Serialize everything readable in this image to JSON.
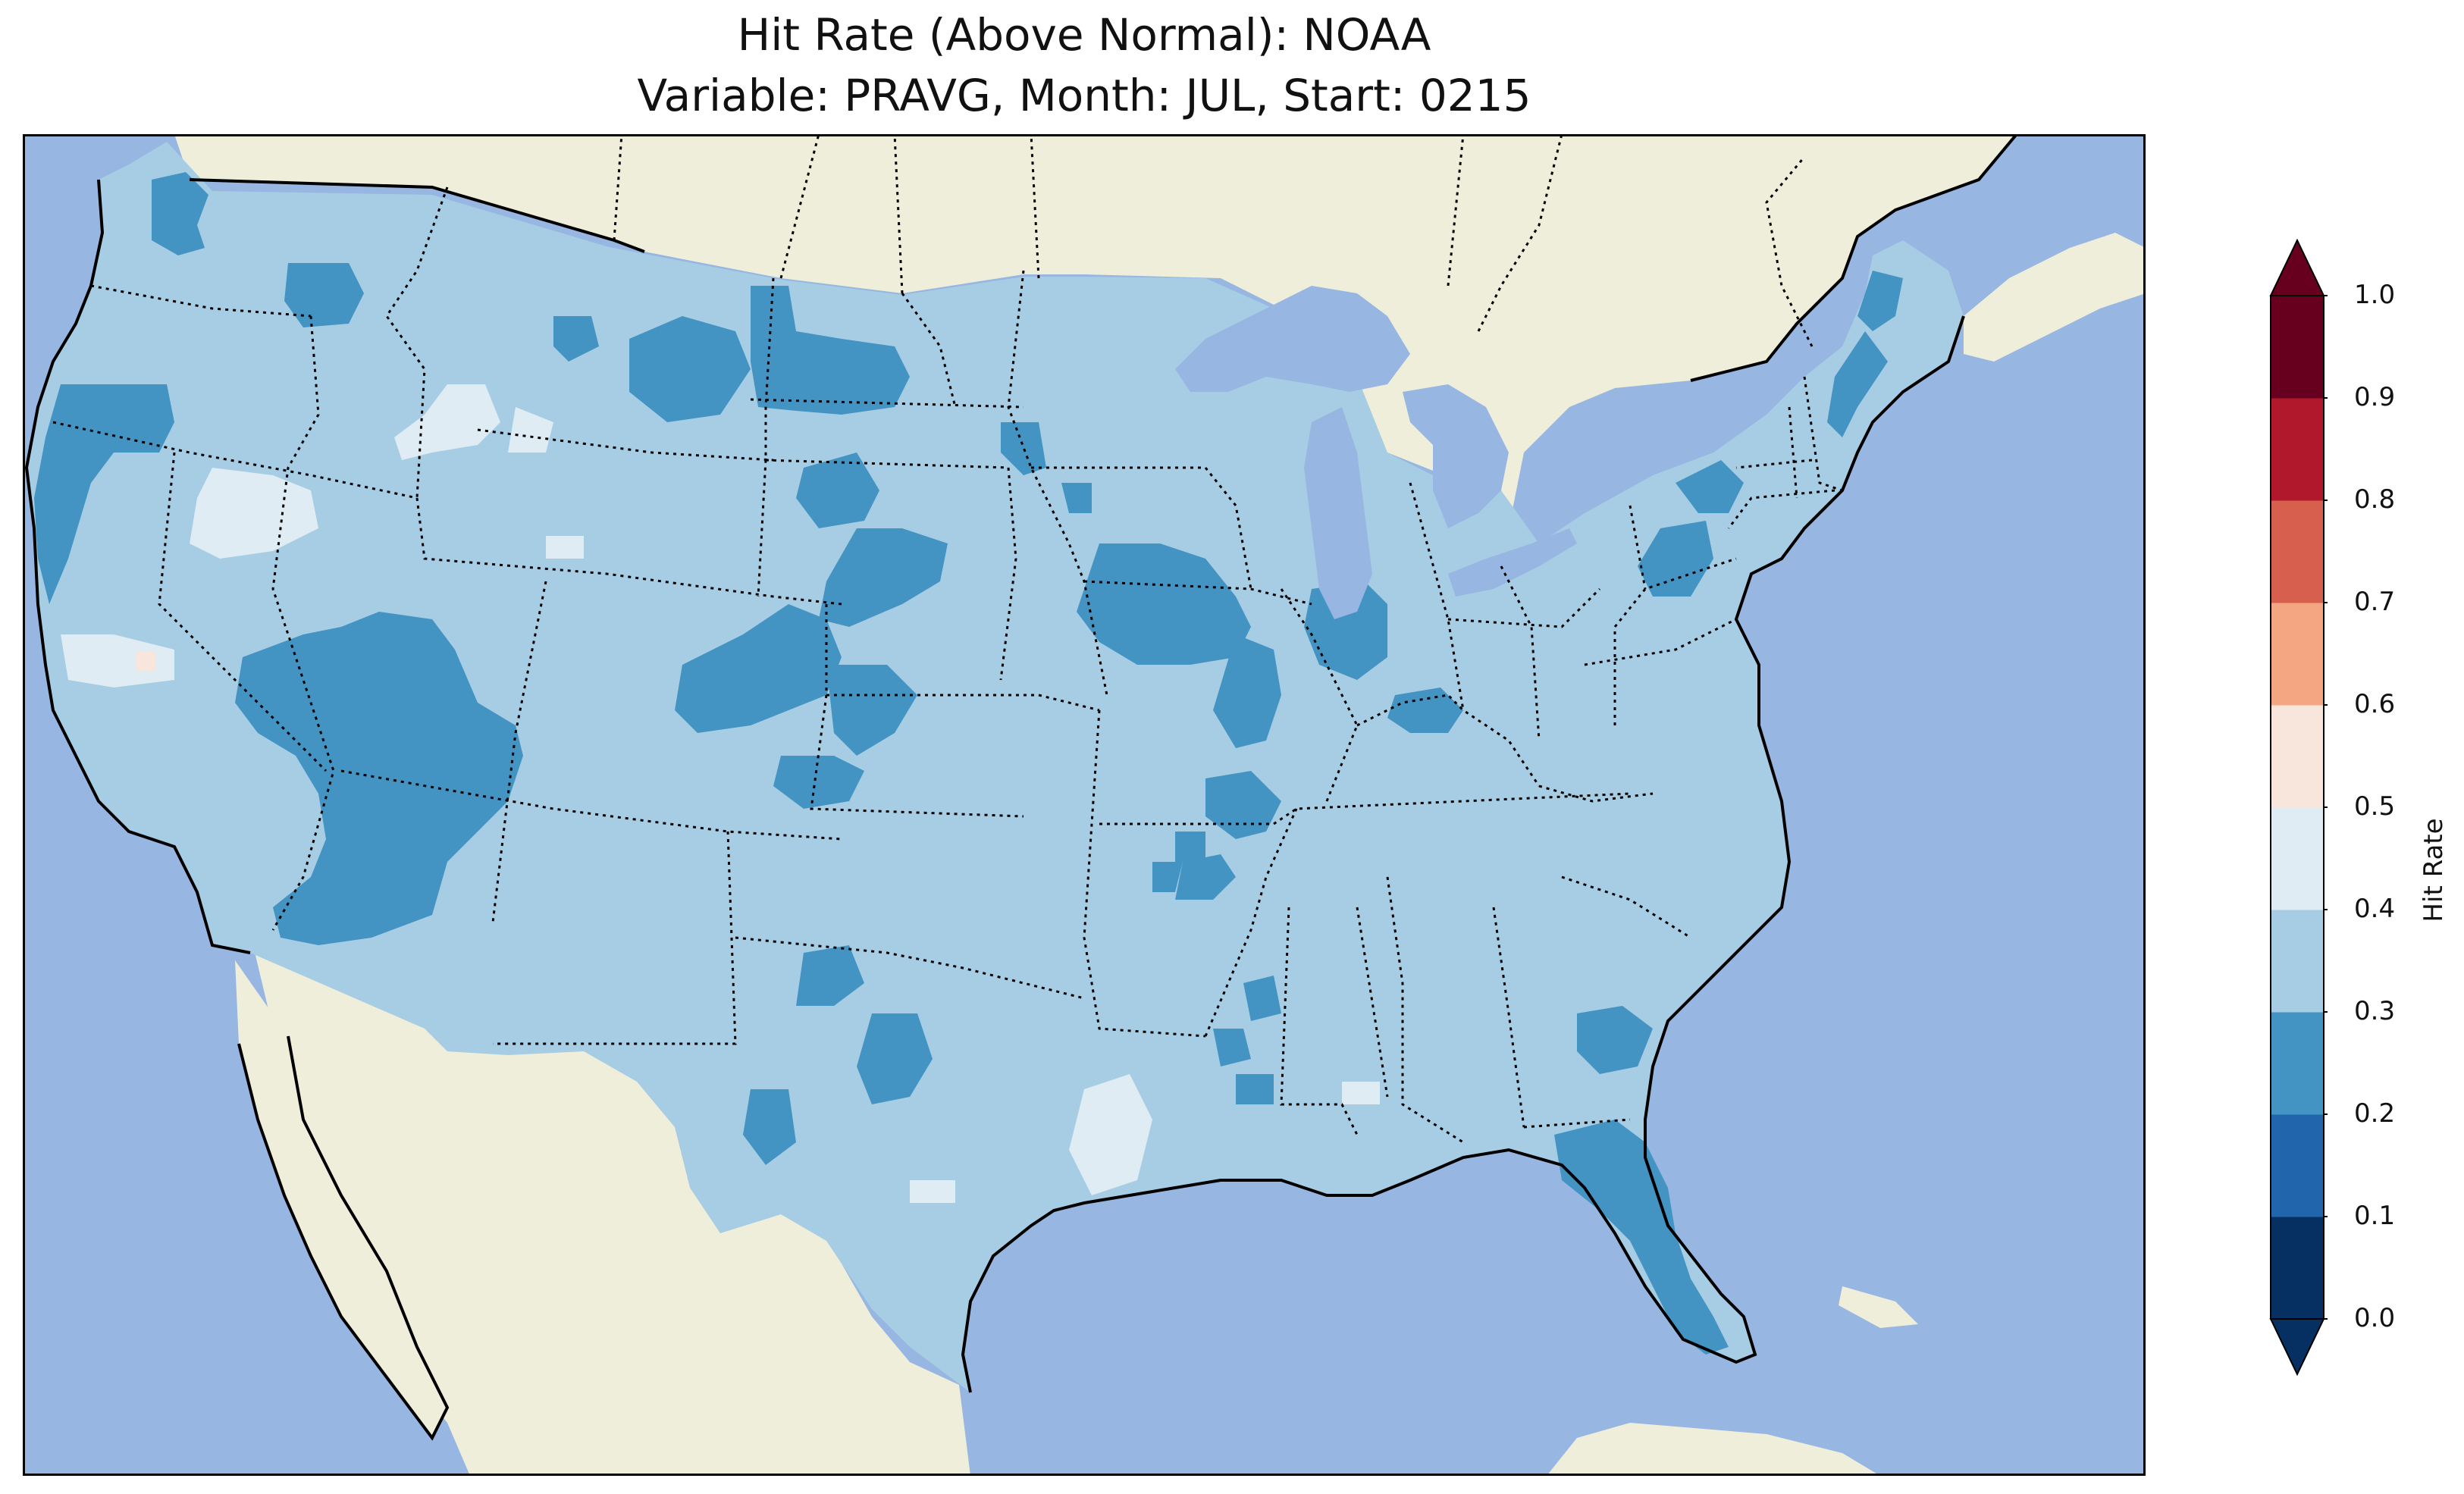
{
  "title": "Hit Rate (Above Normal): NOAA",
  "subtitle": "Variable: PRAVG, Month: JUL, Start: 0215",
  "colorbar": {
    "label": "Hit Rate",
    "extend": "both",
    "ticks": [
      "0.0",
      "0.1",
      "0.2",
      "0.3",
      "0.4",
      "0.5",
      "0.6",
      "0.7",
      "0.8",
      "0.9",
      "1.0"
    ],
    "bins": [
      {
        "range": [
          0.0,
          0.1
        ],
        "color": "#053061"
      },
      {
        "range": [
          0.1,
          0.2
        ],
        "color": "#2166ac"
      },
      {
        "range": [
          0.2,
          0.3
        ],
        "color": "#4393c3"
      },
      {
        "range": [
          0.3,
          0.4
        ],
        "color": "#a6cde3"
      },
      {
        "range": [
          0.4,
          0.5
        ],
        "color": "#e0ecf4"
      },
      {
        "range": [
          0.5,
          0.6
        ],
        "color": "#f8e6dd"
      },
      {
        "range": [
          0.6,
          0.7
        ],
        "color": "#f4a582"
      },
      {
        "range": [
          0.7,
          0.8
        ],
        "color": "#d6604d"
      },
      {
        "range": [
          0.8,
          0.9
        ],
        "color": "#b2182b"
      },
      {
        "range": [
          0.9,
          1.0
        ],
        "color": "#67001f"
      }
    ]
  },
  "map_colors": {
    "ocean": "#97b6e1",
    "land": "#efeedb",
    "dominant_bin": "#a6cde3"
  }
}
